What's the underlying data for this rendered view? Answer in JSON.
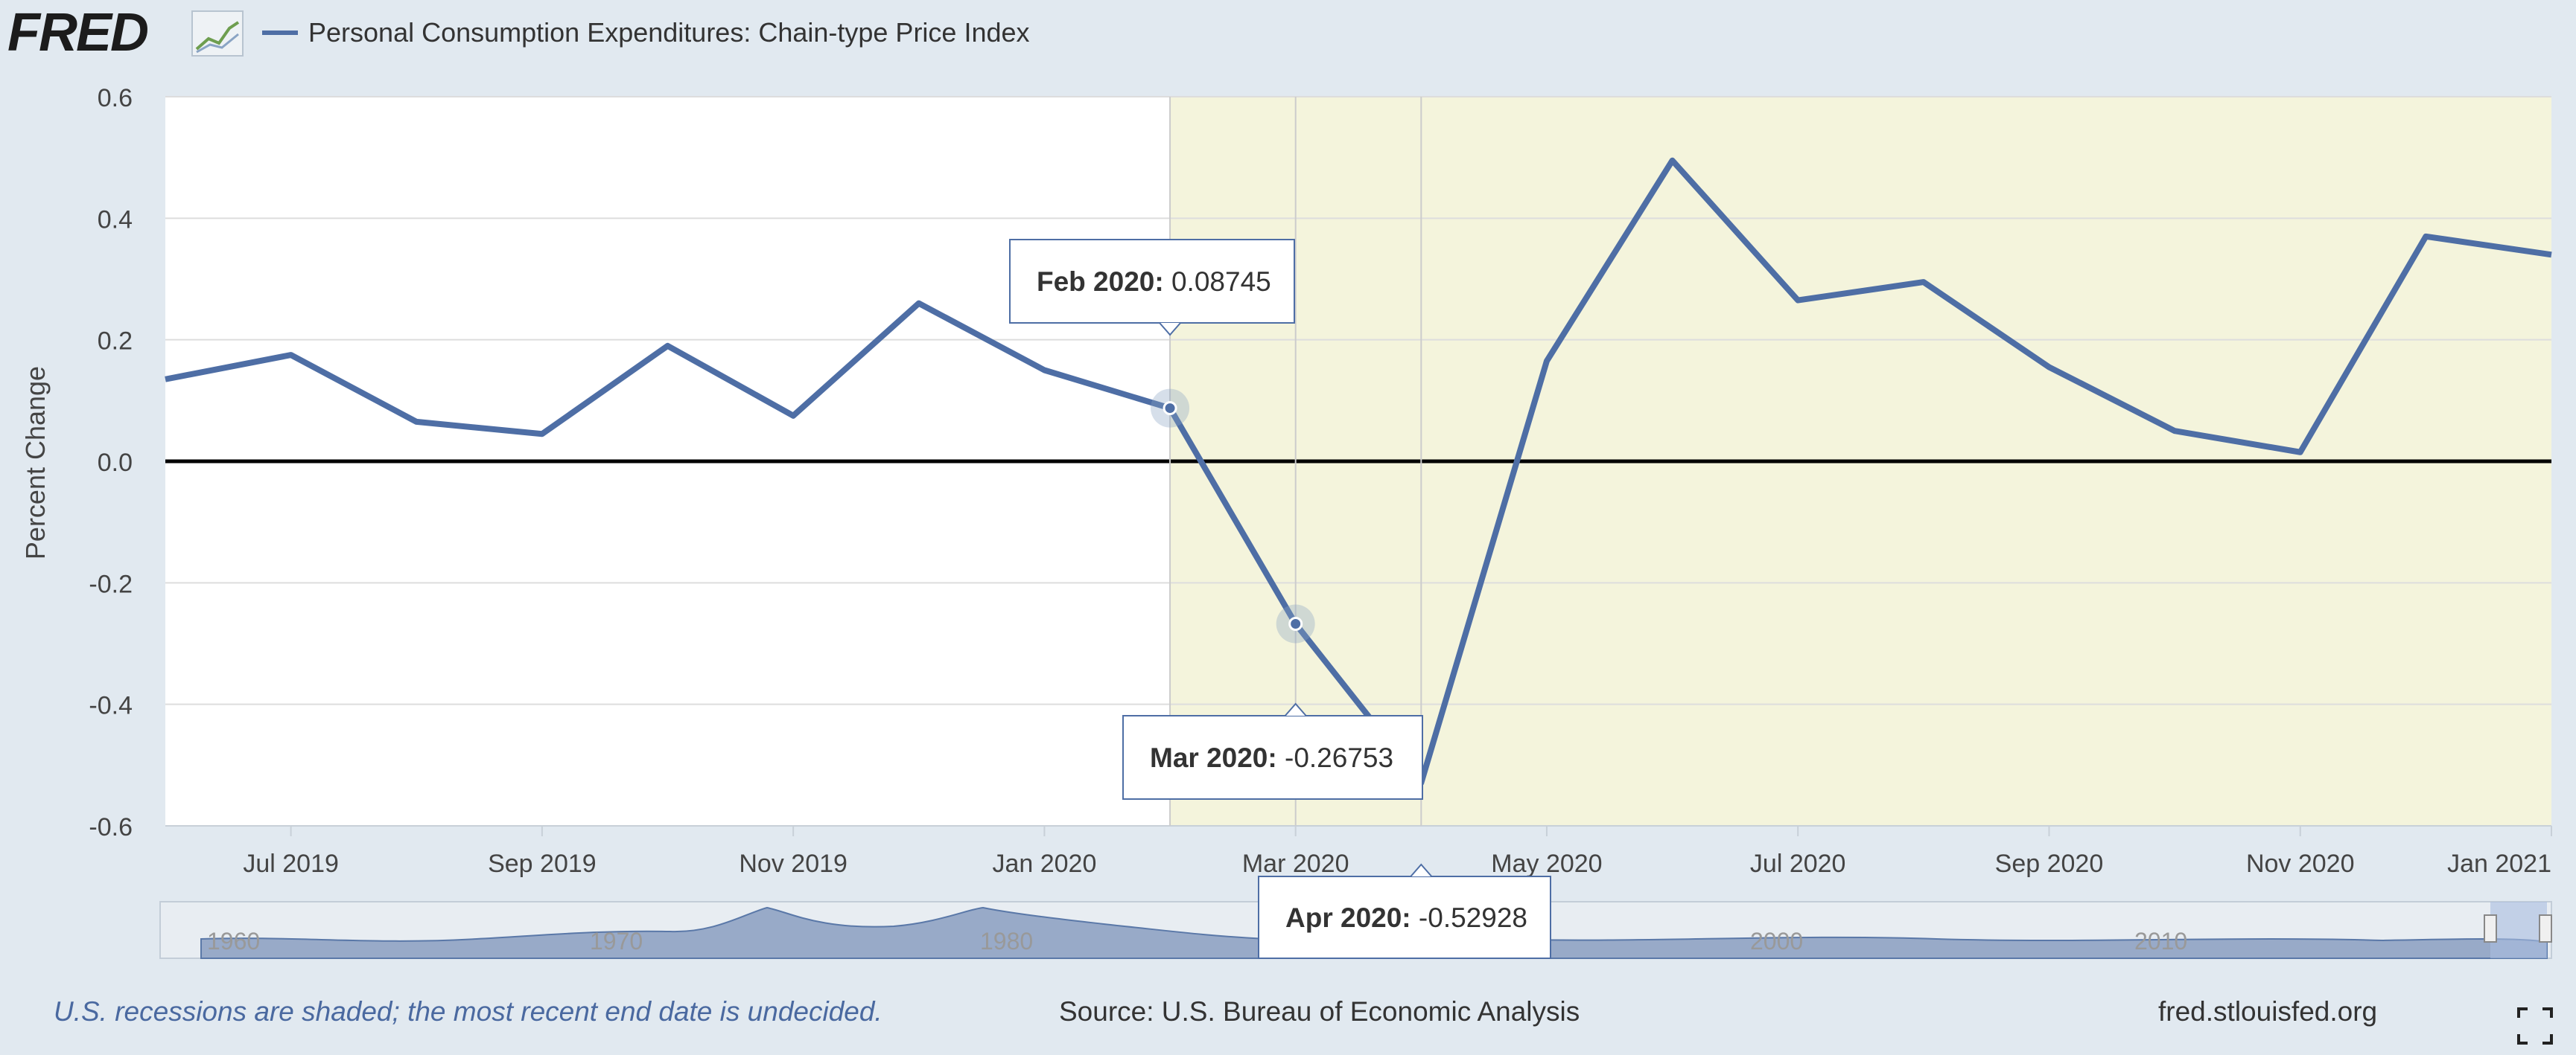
{
  "header": {
    "logo_text": "FRED",
    "series_title": "Personal Consumption Expenditures: Chain-type Price Index",
    "series_color": "#4e6ea5"
  },
  "chart_data": {
    "type": "line",
    "title": "Personal Consumption Expenditures: Chain-type Price Index",
    "ylabel": "Percent Change",
    "xlabel": "",
    "ylim": [
      -0.6,
      0.6
    ],
    "yticks": [
      0.6,
      0.4,
      0.2,
      0.0,
      -0.2,
      -0.4,
      -0.6
    ],
    "ytick_labels": [
      "0.6",
      "0.4",
      "0.2",
      "0.0",
      "-0.2",
      "-0.4",
      "-0.6"
    ],
    "xlim": [
      "2019-06",
      "2021-01"
    ],
    "xticks": [
      "2019-07",
      "2019-09",
      "2019-11",
      "2020-01",
      "2020-03",
      "2020-05",
      "2020-07",
      "2020-09",
      "2020-11",
      "2021-01"
    ],
    "xtick_labels": [
      "Jul 2019",
      "Sep 2019",
      "Nov 2019",
      "Jan 2020",
      "Mar 2020",
      "May 2020",
      "Jul 2020",
      "Sep 2020",
      "Nov 2020",
      "Jan 2021"
    ],
    "grid": true,
    "zero_line": true,
    "series": [
      {
        "name": "Personal Consumption Expenditures: Chain-type Price Index",
        "color": "#4e6ea5",
        "x": [
          "2019-06",
          "2019-07",
          "2019-08",
          "2019-09",
          "2019-10",
          "2019-11",
          "2019-12",
          "2020-01",
          "2020-02",
          "2020-03",
          "2020-04",
          "2020-05",
          "2020-06",
          "2020-07",
          "2020-08",
          "2020-09",
          "2020-10",
          "2020-11",
          "2020-12",
          "2021-01"
        ],
        "values": [
          0.135,
          0.175,
          0.065,
          0.045,
          0.19,
          0.075,
          0.26,
          0.15,
          0.08745,
          -0.26753,
          -0.52928,
          0.165,
          0.495,
          0.265,
          0.295,
          0.155,
          0.05,
          0.015,
          0.37,
          0.34
        ]
      }
    ],
    "recession_band": {
      "start": "2020-02",
      "end": "2021-01",
      "color": "#f4f4dc"
    },
    "tooltips": [
      {
        "label": "Feb 2020:",
        "value": "0.08745",
        "x": "2020-02"
      },
      {
        "label": "Mar 2020:",
        "value": "-0.26753",
        "x": "2020-03"
      },
      {
        "label": "Apr 2020:",
        "value": "-0.52928",
        "x": "2020-04"
      }
    ],
    "navigator": {
      "labels": [
        "1960",
        "1970",
        "1980",
        "2000",
        "2010"
      ]
    }
  },
  "footer": {
    "recession_note": "U.S. recessions are shaded; the most recent end date is undecided.",
    "source": "Source: U.S. Bureau of Economic Analysis",
    "website": "fred.stlouisfed.org"
  },
  "icons": {
    "logo_graph": "line-graph-icon",
    "fullscreen": "fullscreen-icon"
  }
}
